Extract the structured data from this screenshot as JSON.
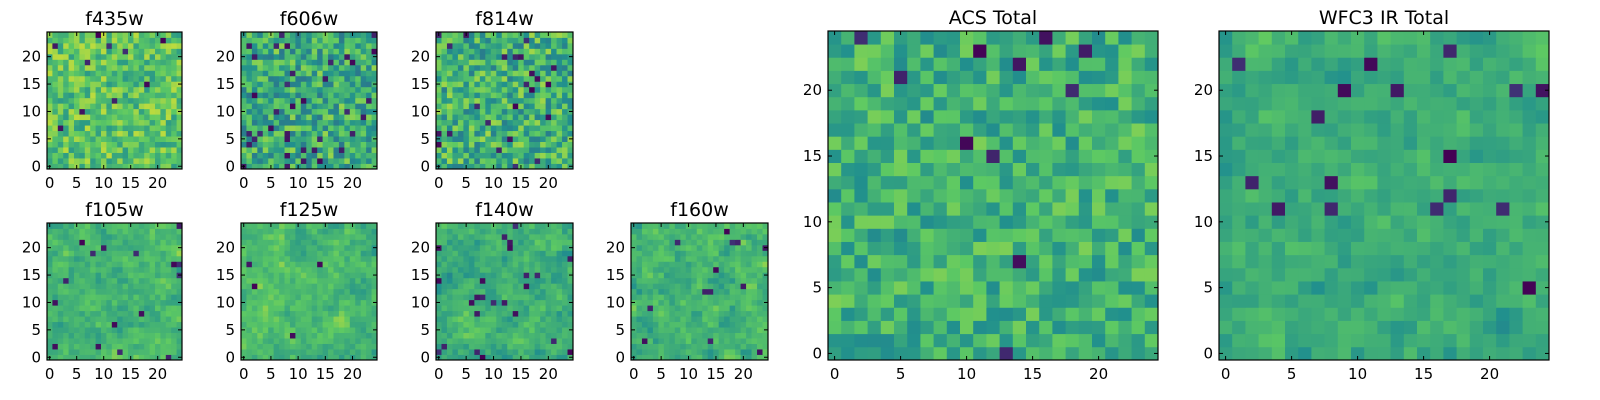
{
  "figure": {
    "colormap": "viridis",
    "colormap_stops": [
      "#440154",
      "#3b528b",
      "#21908d",
      "#5dc963",
      "#fde725"
    ],
    "background": "#ffffff"
  },
  "chart_data": [
    {
      "type": "heatmap",
      "title": "f435w",
      "grid_size": 25,
      "xticks": [
        0,
        5,
        10,
        15,
        20
      ],
      "yticks": [
        0,
        5,
        10,
        15,
        20
      ],
      "xlim": [
        -0.5,
        24.5
      ],
      "ylim": [
        -0.5,
        24.5
      ],
      "seed": 11,
      "mean": 0.72,
      "spread": 0.18,
      "smooth": 0,
      "dark_fraction": 0.02
    },
    {
      "type": "heatmap",
      "title": "f606w",
      "grid_size": 25,
      "xticks": [
        0,
        5,
        10,
        15,
        20
      ],
      "yticks": [
        0,
        5,
        10,
        15,
        20
      ],
      "xlim": [
        -0.5,
        24.5
      ],
      "ylim": [
        -0.5,
        24.5
      ],
      "seed": 23,
      "mean": 0.62,
      "spread": 0.22,
      "smooth": 0,
      "dark_fraction": 0.05
    },
    {
      "type": "heatmap",
      "title": "f814w",
      "grid_size": 25,
      "xticks": [
        0,
        5,
        10,
        15,
        20
      ],
      "yticks": [
        0,
        5,
        10,
        15,
        20
      ],
      "xlim": [
        -0.5,
        24.5
      ],
      "ylim": [
        -0.5,
        24.5
      ],
      "seed": 37,
      "mean": 0.64,
      "spread": 0.22,
      "smooth": 0,
      "dark_fraction": 0.04
    },
    {
      "type": "heatmap",
      "title": "f105w",
      "grid_size": 25,
      "xticks": [
        0,
        5,
        10,
        15,
        20
      ],
      "yticks": [
        0,
        5,
        10,
        15,
        20
      ],
      "xlim": [
        -0.5,
        24.5
      ],
      "ylim": [
        -0.5,
        24.5
      ],
      "seed": 41,
      "mean": 0.66,
      "spread": 0.2,
      "smooth": 1,
      "dark_fraction": 0.02
    },
    {
      "type": "heatmap",
      "title": "f125w",
      "grid_size": 25,
      "xticks": [
        0,
        5,
        10,
        15,
        20
      ],
      "yticks": [
        0,
        5,
        10,
        15,
        20
      ],
      "xlim": [
        -0.5,
        24.5
      ],
      "ylim": [
        -0.5,
        24.5
      ],
      "seed": 53,
      "mean": 0.68,
      "spread": 0.2,
      "smooth": 1,
      "dark_fraction": 0.02
    },
    {
      "type": "heatmap",
      "title": "f140w",
      "grid_size": 25,
      "xticks": [
        0,
        5,
        10,
        15,
        20
      ],
      "yticks": [
        0,
        5,
        10,
        15,
        20
      ],
      "xlim": [
        -0.5,
        24.5
      ],
      "ylim": [
        -0.5,
        24.5
      ],
      "seed": 67,
      "mean": 0.64,
      "spread": 0.22,
      "smooth": 1,
      "dark_fraction": 0.03
    },
    {
      "type": "heatmap",
      "title": "f160w",
      "grid_size": 25,
      "xticks": [
        0,
        5,
        10,
        15,
        20
      ],
      "yticks": [
        0,
        5,
        10,
        15,
        20
      ],
      "xlim": [
        -0.5,
        24.5
      ],
      "ylim": [
        -0.5,
        24.5
      ],
      "seed": 79,
      "mean": 0.66,
      "spread": 0.22,
      "smooth": 1,
      "dark_fraction": 0.03
    },
    {
      "type": "heatmap",
      "title": "ACS Total",
      "grid_size": 25,
      "xticks": [
        0,
        5,
        10,
        15,
        20
      ],
      "yticks": [
        0,
        5,
        10,
        15,
        20
      ],
      "xlim": [
        -0.5,
        24.5
      ],
      "ylim": [
        -0.5,
        24.5
      ],
      "seed": 97,
      "mean": 0.64,
      "spread": 0.16,
      "smooth": 0,
      "dark_fraction": 0.025
    },
    {
      "type": "heatmap",
      "title": "WFC3 IR Total",
      "grid_size": 25,
      "xticks": [
        0,
        5,
        10,
        15,
        20
      ],
      "yticks": [
        0,
        5,
        10,
        15,
        20
      ],
      "xlim": [
        -0.5,
        24.5
      ],
      "ylim": [
        -0.5,
        24.5
      ],
      "seed": 113,
      "mean": 0.62,
      "spread": 0.16,
      "smooth": 1,
      "dark_fraction": 0.02
    }
  ]
}
